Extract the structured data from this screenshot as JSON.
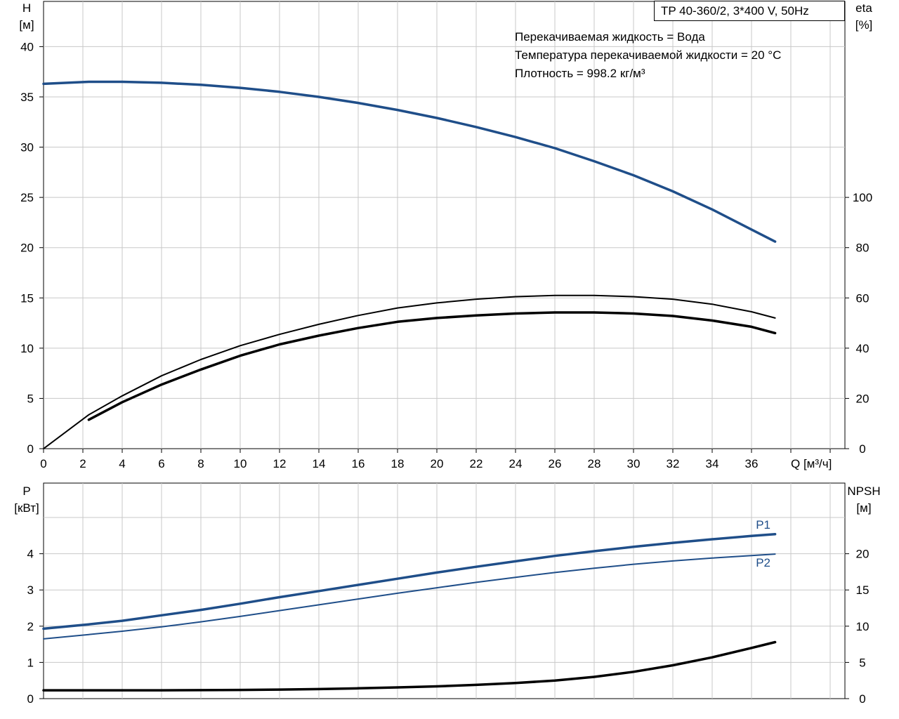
{
  "header": {
    "model": "TP 40-360/2, 3*400 V, 50Hz",
    "notes": [
      "Перекачиваемая жидкость = Вода",
      "Температура перекачиваемой жидкости = 20 °C",
      "Плотность = 998.2 кг/м³"
    ]
  },
  "chart_data": [
    {
      "type": "line",
      "x_axis": {
        "label": "Q [м³/ч]",
        "range": [
          0,
          40
        ],
        "ticks": [
          0,
          2,
          4,
          6,
          8,
          10,
          12,
          14,
          16,
          18,
          20,
          22,
          24,
          26,
          28,
          30,
          32,
          34,
          36
        ]
      },
      "y_left": {
        "label_top": "H",
        "label_unit": "[м]",
        "range": [
          0,
          44.5
        ],
        "ticks": [
          0,
          5,
          10,
          15,
          20,
          25,
          30,
          35,
          40
        ]
      },
      "y_right": {
        "label_top": "eta",
        "label_unit": "[%]",
        "range": [
          0,
          178
        ],
        "ticks": [
          0,
          20,
          40,
          60,
          80,
          100
        ]
      },
      "grid": true,
      "series": [
        {
          "role": "head",
          "axis": "left",
          "color": "#1f4e89",
          "x": [
            0,
            2.3,
            4,
            6,
            8,
            10,
            12,
            14,
            16,
            18,
            20,
            22,
            24,
            26,
            28,
            30,
            32,
            34,
            36,
            37.2
          ],
          "y": [
            36.3,
            36.5,
            36.5,
            36.4,
            36.2,
            35.9,
            35.5,
            35.0,
            34.4,
            33.7,
            32.9,
            32.0,
            31.0,
            29.9,
            28.6,
            27.2,
            25.6,
            23.8,
            21.8,
            20.6
          ]
        },
        {
          "role": "efficiency-thin",
          "axis": "right",
          "color": "#000000",
          "x": [
            0,
            2.3,
            4,
            6,
            8,
            10,
            12,
            14,
            16,
            18,
            20,
            22,
            24,
            26,
            28,
            30,
            32,
            34,
            36,
            37.2
          ],
          "y": [
            0,
            13.5,
            21,
            29,
            35.5,
            41,
            45.5,
            49.5,
            53,
            56,
            58,
            59.5,
            60.5,
            61,
            61,
            60.5,
            59.5,
            57.5,
            54.5,
            52
          ]
        },
        {
          "role": "efficiency-thick",
          "axis": "right",
          "color": "#000000",
          "x": [
            2.3,
            4,
            6,
            8,
            10,
            12,
            14,
            16,
            18,
            20,
            22,
            24,
            26,
            28,
            30,
            32,
            34,
            36,
            37.2
          ],
          "y": [
            11.5,
            18.5,
            25.5,
            31.5,
            37,
            41.5,
            45,
            48,
            50.5,
            52,
            53,
            53.8,
            54.2,
            54.2,
            53.8,
            52.8,
            51,
            48.5,
            46
          ]
        }
      ]
    },
    {
      "type": "line",
      "x_axis": {
        "range": [
          0,
          40
        ],
        "ticks": [
          0,
          2,
          4,
          6,
          8,
          10,
          12,
          14,
          16,
          18,
          20,
          22,
          24,
          26,
          28,
          30,
          32,
          34,
          36
        ]
      },
      "y_left": {
        "label_top": "P",
        "label_unit": "[кВт]",
        "range": [
          0,
          5.95
        ],
        "ticks": [
          0,
          1,
          2,
          3,
          4
        ]
      },
      "y_right": {
        "label_top": "NPSH",
        "label_unit": "[м]",
        "range": [
          0,
          29.75
        ],
        "ticks": [
          0,
          5,
          10,
          15,
          20
        ]
      },
      "grid": true,
      "series": [
        {
          "name": "P1",
          "axis": "left",
          "color": "#1f4e89",
          "x": [
            0,
            2.3,
            4,
            6,
            8,
            10,
            12,
            14,
            16,
            18,
            20,
            22,
            24,
            26,
            28,
            30,
            32,
            34,
            36,
            37.2
          ],
          "y": [
            1.93,
            2.05,
            2.15,
            2.3,
            2.45,
            2.62,
            2.8,
            2.97,
            3.14,
            3.31,
            3.48,
            3.64,
            3.79,
            3.94,
            4.07,
            4.19,
            4.3,
            4.4,
            4.49,
            4.54
          ]
        },
        {
          "name": "P2",
          "axis": "left",
          "color": "#1f4e89",
          "x": [
            0,
            2.3,
            4,
            6,
            8,
            10,
            12,
            14,
            16,
            18,
            20,
            22,
            24,
            26,
            28,
            30,
            32,
            34,
            36,
            37.2
          ],
          "y": [
            1.65,
            1.77,
            1.86,
            1.98,
            2.12,
            2.27,
            2.43,
            2.59,
            2.75,
            2.91,
            3.06,
            3.21,
            3.35,
            3.48,
            3.6,
            3.71,
            3.8,
            3.88,
            3.95,
            3.99
          ]
        },
        {
          "role": "npsh",
          "axis": "right",
          "color": "#000000",
          "x": [
            0,
            2.3,
            4,
            6,
            8,
            10,
            12,
            14,
            16,
            18,
            20,
            22,
            24,
            26,
            28,
            30,
            32,
            34,
            36,
            37.2
          ],
          "y": [
            1.15,
            1.15,
            1.15,
            1.15,
            1.17,
            1.2,
            1.25,
            1.32,
            1.42,
            1.55,
            1.7,
            1.9,
            2.15,
            2.5,
            3.0,
            3.7,
            4.6,
            5.7,
            7.0,
            7.8
          ]
        }
      ]
    }
  ]
}
